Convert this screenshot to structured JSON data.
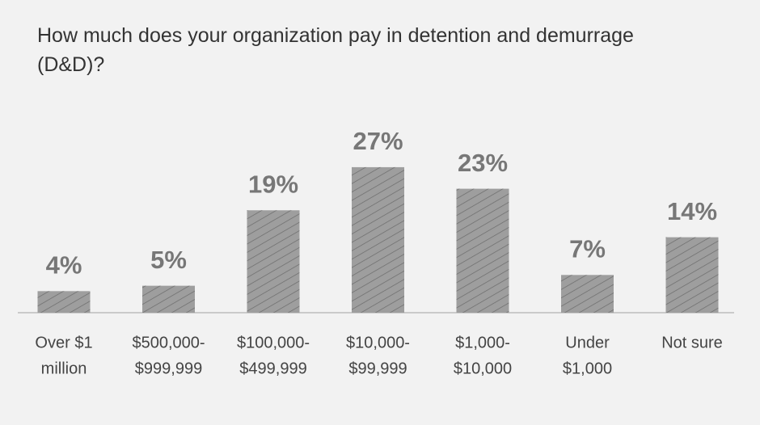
{
  "chart_data": {
    "type": "bar",
    "title": "How much does your organization pay in detention and demurrage (D&D)?",
    "categories": [
      [
        "Over $1",
        "million"
      ],
      [
        "$500,000-",
        "$999,999"
      ],
      [
        "$100,000-",
        "$499,999"
      ],
      [
        "$10,000-",
        "$99,999"
      ],
      [
        "$1,000-",
        "$10,000"
      ],
      [
        "Under",
        "$1,000"
      ],
      [
        "Not sure"
      ]
    ],
    "values": [
      4,
      5,
      19,
      27,
      23,
      7,
      14
    ],
    "value_labels": [
      "4%",
      "5%",
      "19%",
      "27%",
      "23%",
      "7%",
      "14%"
    ],
    "color": "#9e9e9e"
  }
}
